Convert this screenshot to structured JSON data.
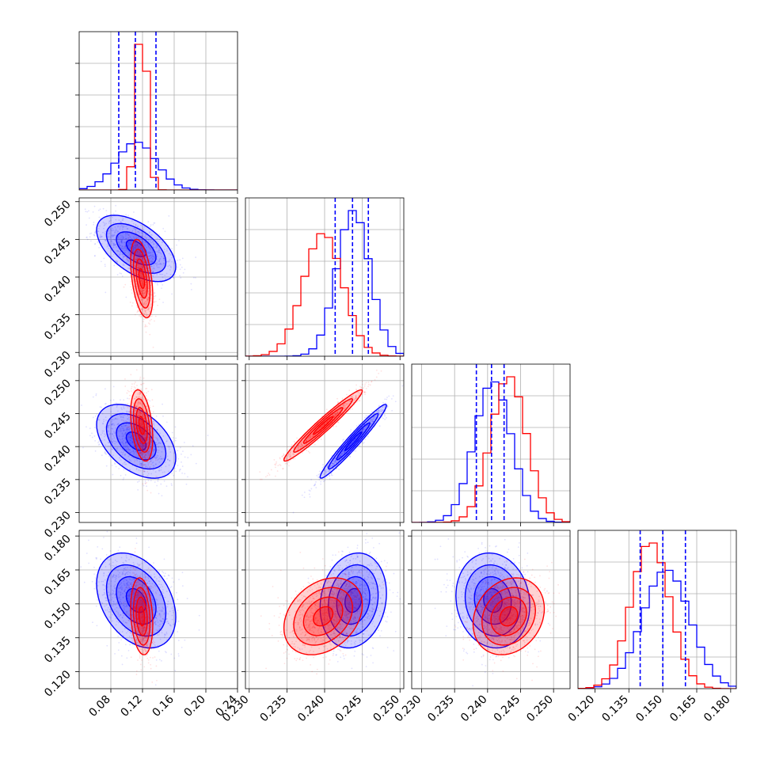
{
  "colors": {
    "blue": "#0000ff",
    "red": "#ff0000",
    "grid": "#b0b0b0",
    "frame": "#000000"
  },
  "chart_data": {
    "type": "corner",
    "grid": true,
    "parameters": [
      {
        "lim": [
          0.04,
          0.24
        ],
        "ticks": [
          "0.08",
          "0.12",
          "0.16",
          "0.20",
          "0.24"
        ],
        "tick_values": [
          0.08,
          0.12,
          0.16,
          0.2,
          0.24
        ]
      },
      {
        "lim": [
          0.2295,
          0.2505
        ],
        "ticks": [
          "0.230",
          "0.235",
          "0.240",
          "0.245",
          "0.250"
        ],
        "tick_values": [
          0.23,
          0.235,
          0.24,
          0.245,
          0.25
        ]
      },
      {
        "lim": [
          0.2285,
          0.2525
        ],
        "ticks": [
          "0.230",
          "0.235",
          "0.240",
          "0.245",
          "0.250"
        ],
        "tick_values": [
          0.23,
          0.235,
          0.24,
          0.245,
          0.25
        ]
      },
      {
        "lim": [
          0.1125,
          0.1825
        ],
        "ticks": [
          "0.120",
          "0.135",
          "0.150",
          "0.165",
          "0.180"
        ],
        "tick_values": [
          0.12,
          0.135,
          0.15,
          0.165,
          0.18
        ]
      }
    ],
    "series": [
      {
        "color": "#0000ff",
        "means": [
          0.112,
          0.2438,
          0.2408,
          0.1515
        ],
        "sds": [
          0.025,
          0.0022,
          0.0028,
          0.0105
        ],
        "quantiles": [
          [
            0.09,
            0.111,
            0.137
          ],
          [
            0.2414,
            0.2437,
            0.2458
          ],
          [
            0.2383,
            0.2406,
            0.2425
          ],
          [
            0.14,
            0.15,
            0.16
          ]
        ]
      },
      {
        "color": "#ff0000",
        "means": [
          0.119,
          0.2398,
          0.2432,
          0.1445
        ],
        "sds": [
          0.007,
          0.0026,
          0.0027,
          0.0085
        ],
        "quantiles": []
      }
    ],
    "correlations": {
      "blue": {
        "0-1": -0.55,
        "0-2": -0.45,
        "1-2": 0.97,
        "0-3": -0.35,
        "1-3": 0.15,
        "2-3": -0.1
      },
      "red": {
        "0-1": -0.45,
        "0-2": -0.35,
        "1-2": 0.97,
        "0-3": -0.2,
        "1-3": 0.3,
        "2-3": 0.2
      }
    },
    "contour_sigmas": [
      0.5,
      1.0,
      1.5,
      2.0
    ]
  }
}
